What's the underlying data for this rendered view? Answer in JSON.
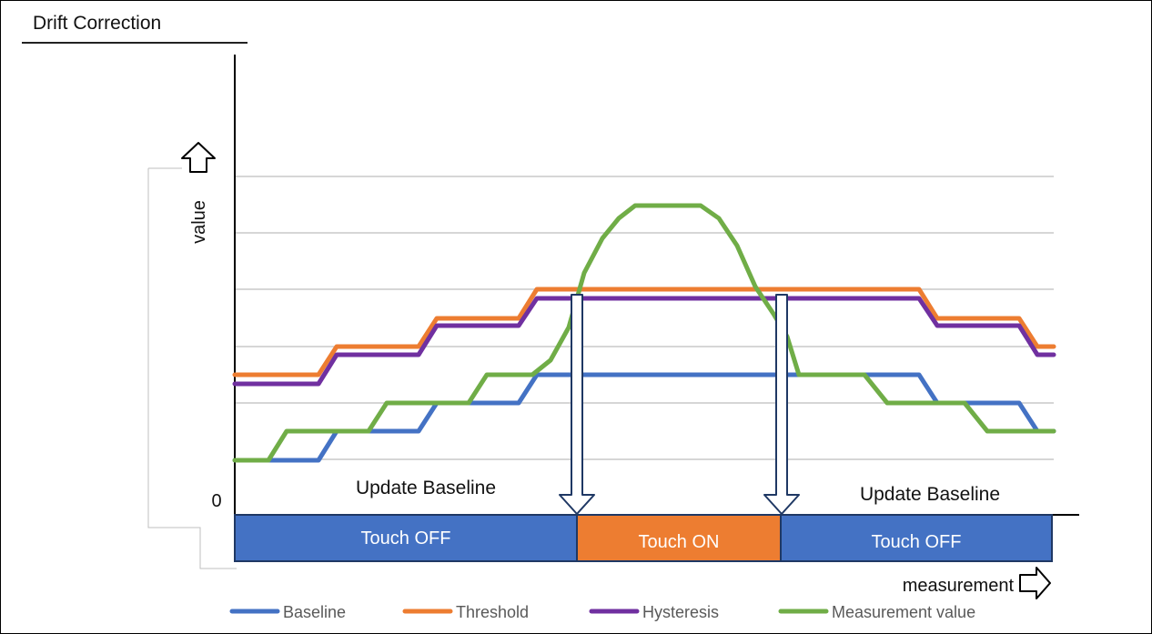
{
  "title": "Drift Correction",
  "axis": {
    "y_label": "value",
    "x_label": "measurement",
    "zero_label": "0"
  },
  "annotations": {
    "update_left": "Update Baseline",
    "update_right": "Update Baseline"
  },
  "state_bar": [
    {
      "label": "Touch OFF",
      "color": "#4472c4"
    },
    {
      "label": "Touch ON",
      "color": "#ed7d31"
    },
    {
      "label": "Touch OFF",
      "color": "#4472c4"
    }
  ],
  "legend": [
    {
      "label": "Baseline",
      "color": "#4472c4"
    },
    {
      "label": "Threshold",
      "color": "#ed7d31"
    },
    {
      "label": "Hysteresis",
      "color": "#7030a0"
    },
    {
      "label": "Measurement value",
      "color": "#70ad47"
    }
  ],
  "colors": {
    "baseline": "#4472c4",
    "threshold": "#ed7d31",
    "hysteresis": "#7030a0",
    "measurement": "#70ad47",
    "arrow": "#1f3864"
  }
}
